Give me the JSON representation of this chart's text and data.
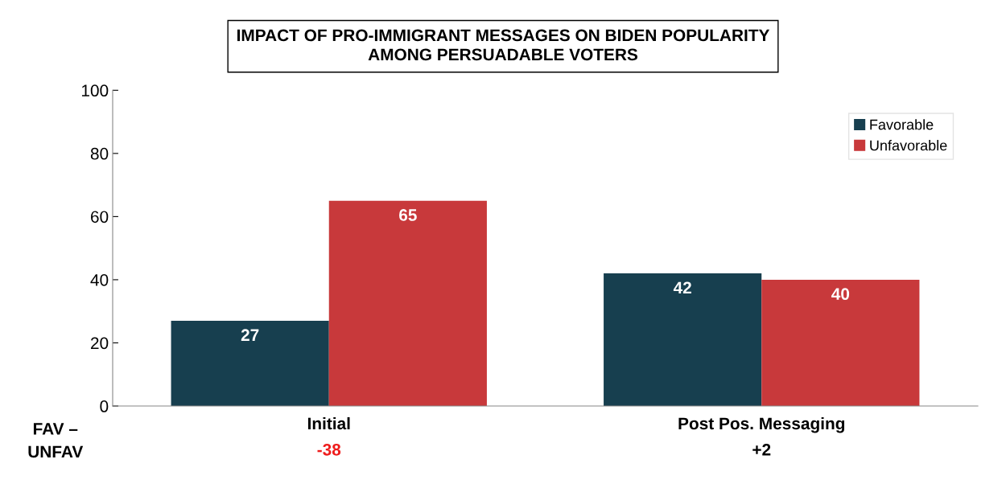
{
  "chart_data": {
    "type": "bar",
    "title": "IMPACT OF PRO-IMMIGRANT MESSAGES ON BIDEN POPULARITY\nAMONG PERSUADABLE VOTERS",
    "categories": [
      "Initial",
      "Post Pos. Messaging"
    ],
    "series": [
      {
        "name": "Favorable",
        "color": "#173f4f",
        "values": [
          27,
          42
        ]
      },
      {
        "name": "Unfavorable",
        "color": "#c8393b",
        "values": [
          65,
          40
        ]
      }
    ],
    "ylim": [
      0,
      100
    ],
    "yticks": [
      0,
      20,
      40,
      60,
      80,
      100
    ],
    "grid": false,
    "legend": "top right",
    "data_labels": true,
    "annotations": [
      "FAV –\nUNFAV",
      "-38",
      "+2"
    ]
  }
}
